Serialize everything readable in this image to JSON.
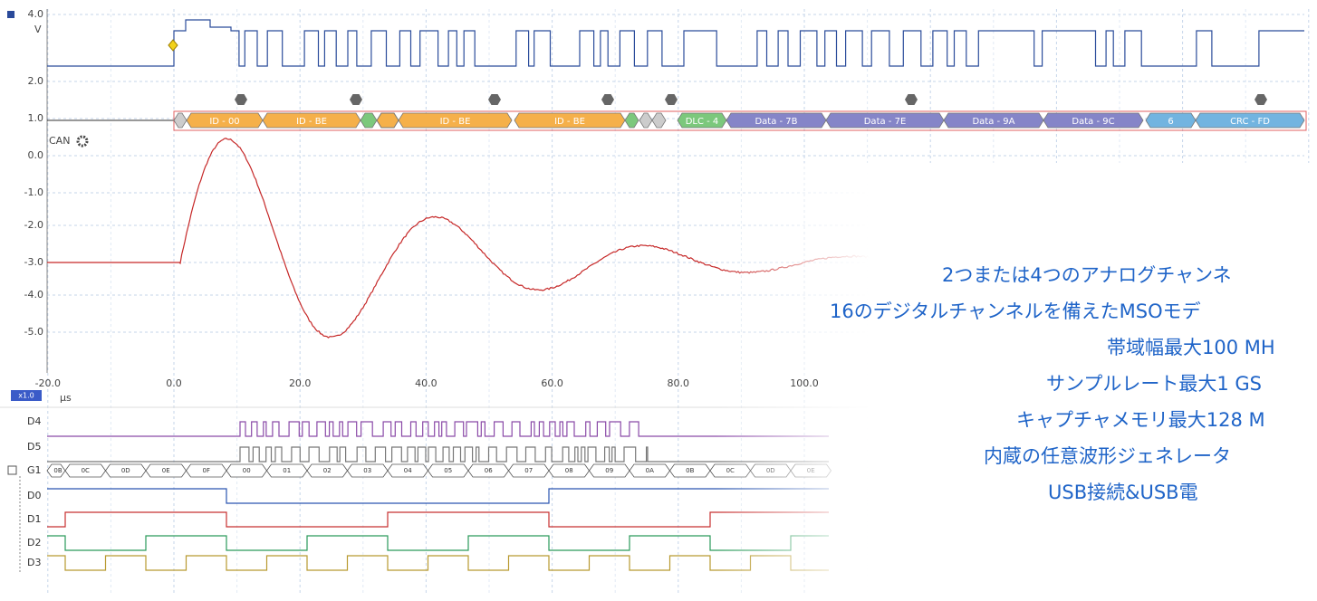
{
  "scope": {
    "unit": "V",
    "y_labels": [
      "4.0",
      "2.0",
      "1.0",
      "0.0",
      "-1.0",
      "-2.0",
      "-3.0",
      "-4.0",
      "-5.0"
    ],
    "channel": "CAN",
    "x_labels": [
      "-20.0",
      "0.0",
      "20.0",
      "40.0",
      "60.0",
      "80.0",
      "100.0"
    ],
    "zoom": "x1.0",
    "x_unit": "µs"
  },
  "decoder": {
    "packets": [
      "ID - 00",
      "ID - BE",
      "ID - BE",
      "ID - BE",
      "DLC - 4",
      "Data - 7B",
      "Data - 7E",
      "Data - 9A",
      "Data - 9C",
      "6",
      "CRC - FD"
    ]
  },
  "digital": {
    "channels": [
      "D4",
      "D5",
      "G1",
      "D0",
      "D1",
      "D2",
      "D3"
    ],
    "bus_values": [
      "0B",
      "0C",
      "0D",
      "0E",
      "0F",
      "00",
      "01",
      "02",
      "03",
      "04",
      "05",
      "06",
      "07",
      "08",
      "09",
      "0A",
      "0B",
      "0C",
      "0D",
      "0E"
    ]
  },
  "overlay": {
    "lines": [
      "2つまたは4つのアナログチャンネ",
      "16のデジタルチャンネルを備えたMSOモデ",
      "帯域幅最大100 MH",
      "サンプルレート最大1 GS",
      "キャプチャメモリ最大128 M",
      "内蔵の任意波形ジェネレータ",
      "USB接続&USB電"
    ]
  }
}
